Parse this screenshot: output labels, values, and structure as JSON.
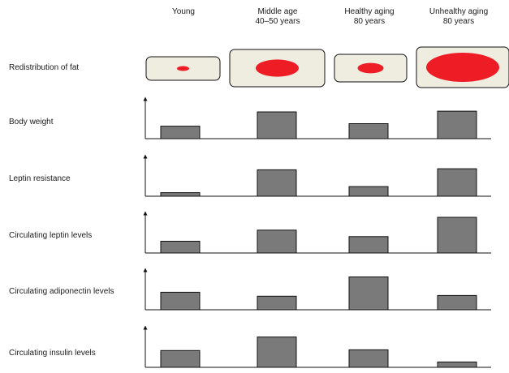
{
  "columns": [
    {
      "line1": "Young",
      "line2": ""
    },
    {
      "line1": "Middle age",
      "line2": "40–50 years"
    },
    {
      "line1": "Healthy aging",
      "line2": "80 years"
    },
    {
      "line1": "Unhealthy aging",
      "line2": "80 years"
    }
  ],
  "fat_row": {
    "label": "Redistribution of fat",
    "fat_amount": [
      0.15,
      0.53,
      0.32,
      0.9
    ],
    "box_fill": "#efece0",
    "fat_color": "#ee1c25"
  },
  "bar_color": "#7a7a7a",
  "rows": [
    {
      "label": "Body weight",
      "values": [
        0.35,
        0.75,
        0.42,
        0.77
      ]
    },
    {
      "label": "Leptin resistance",
      "values": [
        0.1,
        0.74,
        0.27,
        0.77
      ]
    },
    {
      "label": "Circulating leptin levels",
      "values": [
        0.33,
        0.64,
        0.46,
        1.0
      ]
    },
    {
      "label": "Circulating adiponectin levels",
      "values": [
        0.49,
        0.38,
        0.92,
        0.4
      ]
    },
    {
      "label": "Circulating insulin levels",
      "values": [
        0.47,
        0.85,
        0.49,
        0.15
      ]
    }
  ]
}
